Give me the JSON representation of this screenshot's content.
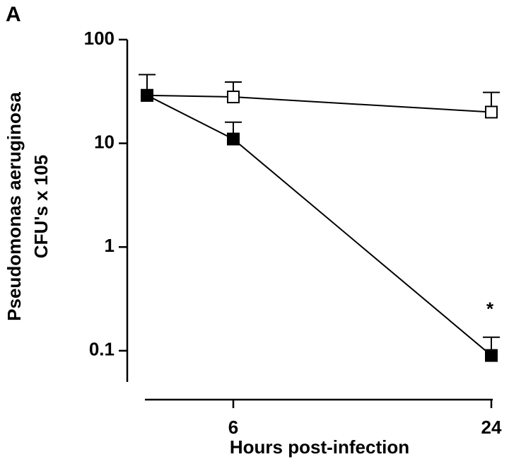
{
  "chart_data": {
    "type": "line",
    "panel_label": "A",
    "ylabel": [
      "Pseudomonas aeruginosa",
      "CFU's x 105"
    ],
    "xlabel": "Hours post-infection",
    "categories": [
      null,
      "6",
      "24"
    ],
    "log_y": true,
    "ylim": [
      0.05,
      100
    ],
    "yticks": [
      0.1,
      1,
      10,
      100
    ],
    "series": [
      {
        "color": "#000000",
        "filled": false,
        "values": [
          29,
          28,
          20
        ],
        "errors": [
          17,
          11,
          11
        ]
      },
      {
        "color": "#000000",
        "filled": true,
        "values": [
          29,
          11,
          0.09
        ],
        "errors": [
          null,
          5,
          0.045
        ]
      }
    ],
    "annotations": [
      {
        "text": "*",
        "series": 1,
        "index": 2
      }
    ]
  }
}
